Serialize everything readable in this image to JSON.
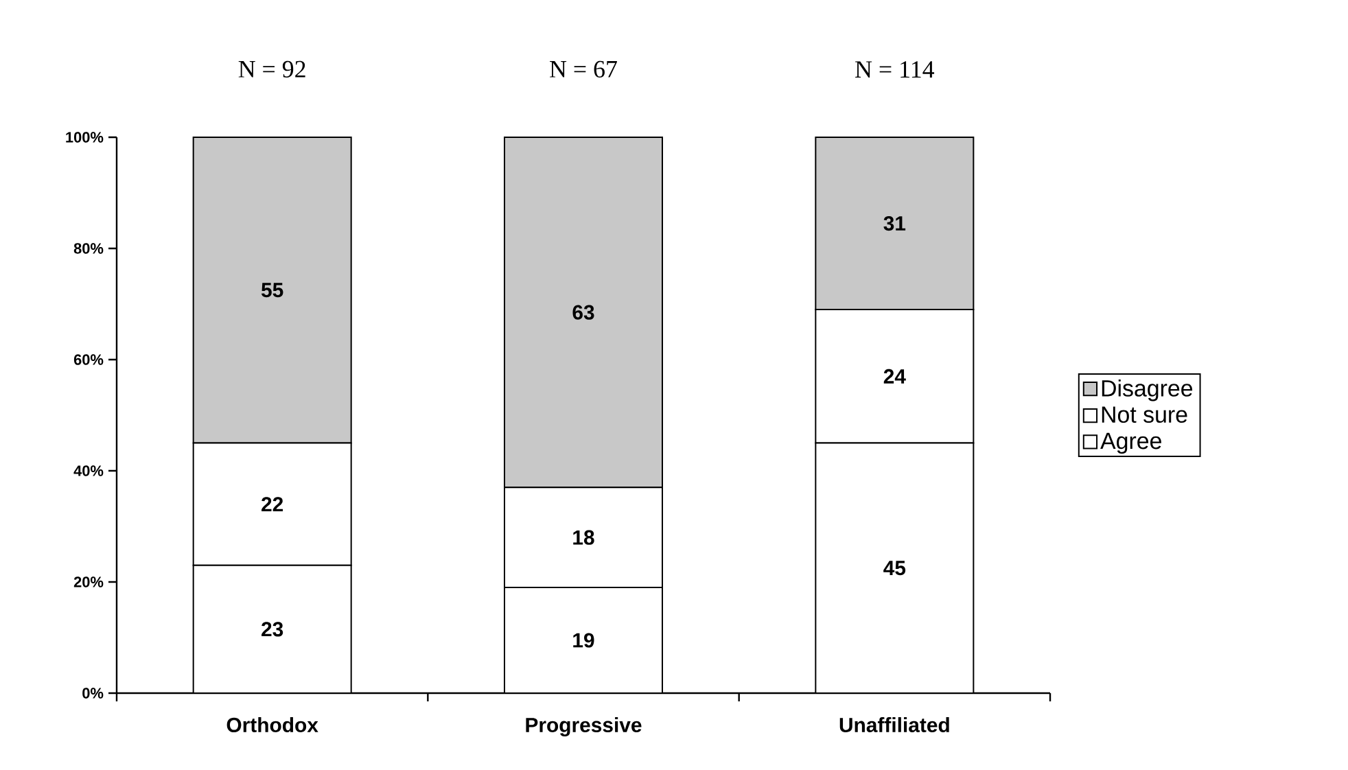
{
  "chart_data": {
    "type": "bar",
    "stacked": true,
    "categories": [
      "Orthodox",
      "Progressive",
      "Unaffiliated"
    ],
    "series": [
      {
        "name": "Agree",
        "color": "#ffffff",
        "values": [
          23,
          19,
          45
        ]
      },
      {
        "name": "Not sure",
        "color": "#ffffff",
        "values": [
          22,
          18,
          24
        ]
      },
      {
        "name": "Disagree",
        "color": "#c8c8c8",
        "values": [
          55,
          63,
          31
        ]
      }
    ],
    "ylim": [
      0,
      100
    ],
    "yticks": [
      {
        "value": 0,
        "label": "0%"
      },
      {
        "value": 20,
        "label": "20%"
      },
      {
        "value": 40,
        "label": "40%"
      },
      {
        "value": 60,
        "label": "60%"
      },
      {
        "value": 80,
        "label": "80%"
      },
      {
        "value": 100,
        "label": "100%"
      }
    ],
    "annotations": [
      "N = 92",
      "N = 67",
      "N = 114"
    ],
    "data_labels": true,
    "legend": "right",
    "grid": false
  }
}
